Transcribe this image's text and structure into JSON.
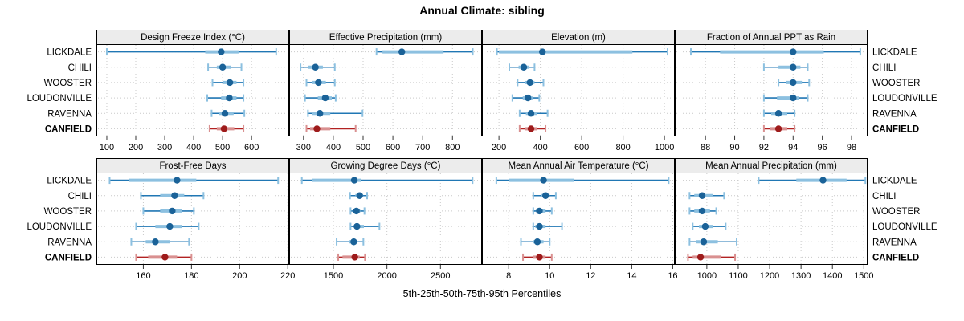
{
  "chart_data": {
    "type": "dotplot-intervals",
    "title": "Annual Climate: sibling",
    "caption": "5th-25th-50th-75th-95th Percentiles",
    "sites": [
      "LICKDALE",
      "CHILI",
      "WOOSTER",
      "LOUDONVILLE",
      "RAVENNA",
      "CANFIELD"
    ],
    "highlight_site": "CANFIELD",
    "percentile_labels": [
      "p5",
      "p25",
      "p50",
      "p75",
      "p95"
    ],
    "colors": {
      "blue_line": "#2077b4",
      "blue_band": "#8cc0e0",
      "blue_dot": "#1a6298",
      "red_line": "#b22222",
      "red_band": "#d99090",
      "red_dot": "#9e1b1b",
      "grid": "#c9c9c9",
      "strip_bg": "#ececec",
      "panel_border": "#000000",
      "text": "#000000"
    },
    "grid": "dotted",
    "legend_position": "none",
    "panels": [
      {
        "title": "Design Freeze Index (°C)",
        "row": 0,
        "col": 0,
        "xlim": [
          64,
          730
        ],
        "ticks": [
          100,
          200,
          300,
          400,
          500,
          600
        ],
        "values": [
          [
            100,
            440,
            495,
            555,
            685
          ],
          [
            450,
            480,
            500,
            528,
            565
          ],
          [
            465,
            500,
            525,
            548,
            572
          ],
          [
            447,
            495,
            523,
            548,
            572
          ],
          [
            462,
            488,
            508,
            538,
            575
          ],
          [
            455,
            480,
            505,
            540,
            572
          ]
        ]
      },
      {
        "title": "Effective Precipitation (mm)",
        "row": 0,
        "col": 1,
        "xlim": [
          252,
          899
        ],
        "ticks": [
          300,
          400,
          500,
          600,
          700,
          800
        ],
        "values": [
          [
            545,
            565,
            630,
            770,
            868
          ],
          [
            290,
            315,
            340,
            365,
            405
          ],
          [
            310,
            330,
            350,
            375,
            405
          ],
          [
            305,
            348,
            373,
            395,
            408
          ],
          [
            315,
            330,
            355,
            390,
            498
          ],
          [
            310,
            322,
            345,
            390,
            475
          ]
        ]
      },
      {
        "title": "Elevation (m)",
        "row": 0,
        "col": 2,
        "xlim": [
          118,
          1050
        ],
        "ticks": [
          200,
          400,
          600,
          800,
          1000
        ],
        "values": [
          [
            190,
            200,
            410,
            845,
            1015
          ],
          [
            250,
            295,
            320,
            345,
            372
          ],
          [
            290,
            325,
            350,
            372,
            415
          ],
          [
            265,
            315,
            340,
            362,
            395
          ],
          [
            300,
            330,
            355,
            382,
            435
          ],
          [
            300,
            325,
            355,
            385,
            425
          ]
        ]
      },
      {
        "title": "Fraction of Annual PPT as Rain",
        "row": 0,
        "col": 3,
        "xlim": [
          85.9,
          99.1
        ],
        "ticks": [
          88,
          90,
          92,
          94,
          96,
          98
        ],
        "values": [
          [
            87,
            89,
            94,
            96.1,
            98.6
          ],
          [
            92,
            93,
            94,
            94.5,
            95
          ],
          [
            93,
            93.5,
            94,
            94.6,
            95.1
          ],
          [
            92,
            92.9,
            94,
            94.4,
            95
          ],
          [
            92,
            92.5,
            93,
            93.6,
            94.1
          ],
          [
            92,
            92.4,
            93,
            93.6,
            94.1
          ]
        ]
      },
      {
        "title": "Frost-Free Days",
        "row": 1,
        "col": 0,
        "xlim": [
          140.5,
          220.6
        ],
        "ticks": [
          160,
          180,
          200,
          220
        ],
        "values": [
          [
            146,
            154,
            174,
            182,
            216
          ],
          [
            159,
            167,
            173,
            177,
            185
          ],
          [
            160,
            167,
            172,
            176,
            181
          ],
          [
            157,
            165,
            171,
            176,
            183
          ],
          [
            155,
            161,
            165,
            171,
            179
          ],
          [
            157,
            162,
            169,
            174,
            180
          ]
        ]
      },
      {
        "title": "Growing Degree Days (°C)",
        "row": 1,
        "col": 1,
        "xlim": [
          1087,
          2888
        ],
        "ticks": [
          1500,
          2000,
          2500
        ],
        "values": [
          [
            1205,
            1300,
            1695,
            1760,
            2800
          ],
          [
            1655,
            1705,
            1745,
            1778,
            1815
          ],
          [
            1660,
            1695,
            1715,
            1750,
            1790
          ],
          [
            1660,
            1695,
            1720,
            1785,
            1930
          ],
          [
            1530,
            1645,
            1690,
            1725,
            1780
          ],
          [
            1545,
            1585,
            1700,
            1745,
            1795
          ]
        ]
      },
      {
        "title": "Mean Annual Air Temperature (°C)",
        "row": 1,
        "col": 2,
        "xlim": [
          6.7,
          16.1
        ],
        "ticks": [
          8,
          10,
          12,
          14,
          16
        ],
        "values": [
          [
            7.4,
            8.0,
            9.7,
            11.2,
            15.8
          ],
          [
            9.2,
            9.6,
            9.8,
            10.0,
            10.3
          ],
          [
            9.2,
            9.4,
            9.5,
            9.8,
            10.1
          ],
          [
            9.2,
            9.3,
            9.5,
            9.8,
            10.6
          ],
          [
            8.6,
            9.2,
            9.4,
            9.7,
            10.0
          ],
          [
            8.7,
            9.2,
            9.5,
            9.8,
            10.1
          ]
        ]
      },
      {
        "title": "Mean Annual Precipitation (mm)",
        "row": 1,
        "col": 3,
        "xlim": [
          898,
          1512
        ],
        "ticks": [
          1000,
          1100,
          1200,
          1300,
          1400,
          1500
        ],
        "values": [
          [
            1165,
            1285,
            1370,
            1445,
            1505
          ],
          [
            945,
            960,
            985,
            1020,
            1055
          ],
          [
            945,
            960,
            985,
            1010,
            1030
          ],
          [
            955,
            975,
            995,
            1020,
            1060
          ],
          [
            945,
            965,
            990,
            1035,
            1095
          ],
          [
            940,
            955,
            980,
            1045,
            1090
          ]
        ]
      }
    ]
  }
}
